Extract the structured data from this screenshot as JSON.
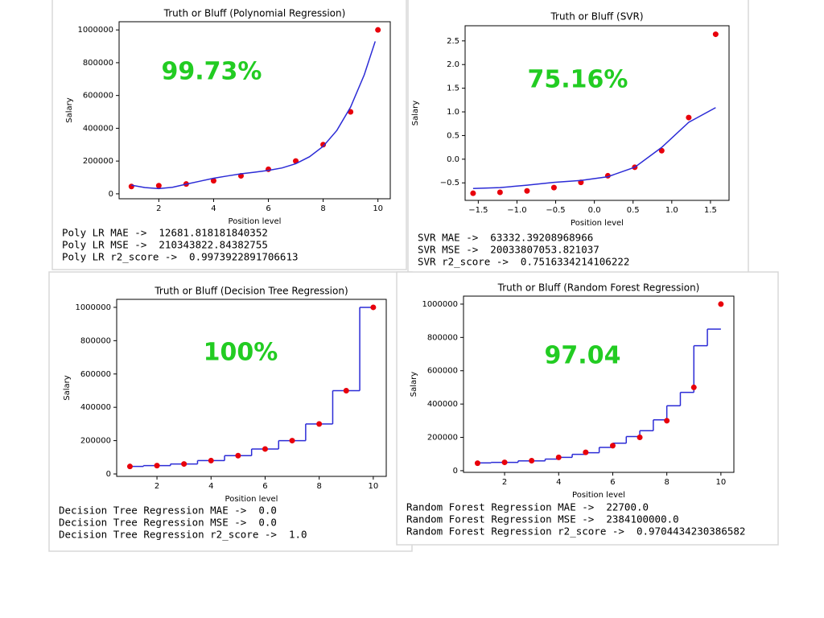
{
  "chart_data": [
    {
      "type": "scatter",
      "title": "Truth or Bluff (Polynomial Regression)",
      "x_label": "Position level",
      "y_label": "Salary",
      "annotation": "99.73%",
      "annotation_color": "#22cc22",
      "xlim": [
        0.55,
        10.45
      ],
      "xticks": [
        2,
        4,
        6,
        8,
        10
      ],
      "ylim": [
        -30000,
        1050000
      ],
      "yticks": [
        0,
        200000,
        400000,
        600000,
        800000,
        1000000
      ],
      "series": [
        {
          "type": "scatter",
          "color": "#e8000b",
          "x": [
            1,
            2,
            3,
            4,
            5,
            6,
            7,
            8,
            9,
            10
          ],
          "values": [
            45000,
            50000,
            60000,
            80000,
            110000,
            150000,
            200000,
            300000,
            500000,
            1000000
          ]
        },
        {
          "type": "line",
          "color": "#2b2bd6",
          "x": [
            1,
            1.5,
            2,
            2.5,
            3,
            3.5,
            4,
            4.5,
            5,
            5.5,
            6,
            6.5,
            7,
            7.5,
            8,
            8.5,
            9,
            9.5,
            9.9
          ],
          "values": [
            53000,
            38000,
            32000,
            40000,
            59000,
            77000,
            95000,
            109000,
            122000,
            132000,
            143000,
            158000,
            184000,
            226000,
            290000,
            387000,
            529000,
            726000,
            930000
          ]
        }
      ],
      "metrics": [
        "Poly LR MAE ->  12681.818181840352",
        "Poly LR MSE ->  210343822.84382755",
        "Poly LR r2_score ->  0.9973922891706613"
      ]
    },
    {
      "type": "scatter",
      "title": "Truth or Bluff (SVR)",
      "x_label": "Position level",
      "y_label": "Salary",
      "annotation": "75.16%",
      "annotation_color": "#22cc22",
      "xlim": [
        -1.67,
        1.74
      ],
      "xticks": [
        {
          "value": -1.5,
          "label": "−1.5"
        },
        {
          "value": -1,
          "label": "−1.0"
        },
        {
          "value": -0.5,
          "label": "−0.5"
        },
        {
          "value": 0,
          "label": "0.0"
        },
        0.5,
        {
          "value": 1,
          "label": "1.0"
        },
        1.5
      ],
      "ylim": [
        -0.87,
        2.82
      ],
      "yticks": [
        {
          "value": -0.5,
          "label": "−0.5"
        },
        {
          "value": 0,
          "label": "0.0"
        },
        0.5,
        {
          "value": 1,
          "label": "1.0"
        },
        1.5,
        {
          "value": 2,
          "label": "2.0"
        },
        2.5
      ],
      "series": [
        {
          "type": "scatter",
          "color": "#e8000b",
          "x": [
            -1.567,
            -1.219,
            -0.87,
            -0.522,
            -0.174,
            0.174,
            0.522,
            0.87,
            1.219,
            1.567
          ],
          "values": [
            -0.72,
            -0.7,
            -0.67,
            -0.6,
            -0.49,
            -0.35,
            -0.17,
            0.18,
            0.88,
            2.64
          ]
        },
        {
          "type": "line",
          "color": "#2b2bd6",
          "x": [
            -1.567,
            -1.219,
            -0.87,
            -0.522,
            -0.174,
            0.174,
            0.522,
            0.87,
            1.219,
            1.567
          ],
          "values": [
            -0.62,
            -0.6,
            -0.55,
            -0.49,
            -0.45,
            -0.37,
            -0.17,
            0.25,
            0.78,
            1.09
          ]
        }
      ],
      "metrics": [
        "SVR MAE ->  63332.39208968966",
        "SVR MSE ->  20033807053.821037",
        "SVR r2_score ->  0.7516334214106222"
      ]
    },
    {
      "type": "scatter",
      "title": "Truth or Bluff (Decision Tree Regression)",
      "x_label": "Position level",
      "y_label": "Salary",
      "annotation": "100%",
      "annotation_color": "#22cc22",
      "xlim": [
        0.51,
        10.48
      ],
      "xticks": [
        2,
        4,
        6,
        8,
        10
      ],
      "ylim": [
        -14500,
        1048000
      ],
      "yticks": [
        0,
        200000,
        400000,
        600000,
        800000,
        1000000
      ],
      "series": [
        {
          "type": "step",
          "color": "#2b2bd6",
          "x": [
            1,
            1.5,
            2.5,
            3.5,
            4.5,
            5.5,
            6.5,
            7.5,
            8.5,
            9.5,
            10
          ],
          "values": [
            45000,
            50000,
            60000,
            80000,
            110000,
            150000,
            200000,
            300000,
            500000,
            1000000,
            1000000
          ]
        },
        {
          "type": "scatter",
          "color": "#e8000b",
          "x": [
            1,
            2,
            3,
            4,
            5,
            6,
            7,
            8,
            9,
            10
          ],
          "values": [
            45000,
            50000,
            60000,
            80000,
            110000,
            150000,
            200000,
            300000,
            500000,
            1000000
          ]
        }
      ],
      "metrics": [
        "Decision Tree Regression MAE ->  0.0",
        "Decision Tree Regression MSE ->  0.0",
        "Decision Tree Regression r2_score ->  1.0"
      ]
    },
    {
      "type": "scatter",
      "title": "Truth or Bluff (Random Forest Regression)",
      "x_label": "Position level",
      "y_label": "Salary",
      "annotation": "97.04",
      "annotation_color": "#22cc22",
      "xlim": [
        0.48,
        10.48
      ],
      "xticks": [
        2,
        4,
        6,
        8,
        10
      ],
      "ylim": [
        -10000,
        1048000
      ],
      "yticks": [
        0,
        200000,
        400000,
        600000,
        800000,
        1000000
      ],
      "series": [
        {
          "type": "step",
          "color": "#2b2bd6",
          "x": [
            1,
            1.5,
            2.5,
            3.5,
            4,
            4.5,
            5,
            5.5,
            6,
            6.5,
            7,
            7.5,
            8,
            8.5,
            9,
            9.5,
            10
          ],
          "values": [
            47000,
            50000,
            59000,
            70000,
            80000,
            98000,
            108000,
            140000,
            165000,
            205000,
            240000,
            305000,
            390000,
            470000,
            750000,
            850000,
            850000
          ]
        },
        {
          "type": "scatter",
          "color": "#e8000b",
          "x": [
            1,
            2,
            3,
            4,
            5,
            6,
            7,
            8,
            9,
            10
          ],
          "values": [
            45000,
            50000,
            60000,
            80000,
            110000,
            150000,
            200000,
            300000,
            500000,
            1000000
          ]
        }
      ],
      "metrics": [
        "Random Forest Regression MAE ->  22700.0",
        "Random Forest Regression MSE ->  2384100000.0",
        "Random Forest Regression r2_score ->  0.9704434230386582"
      ]
    }
  ]
}
